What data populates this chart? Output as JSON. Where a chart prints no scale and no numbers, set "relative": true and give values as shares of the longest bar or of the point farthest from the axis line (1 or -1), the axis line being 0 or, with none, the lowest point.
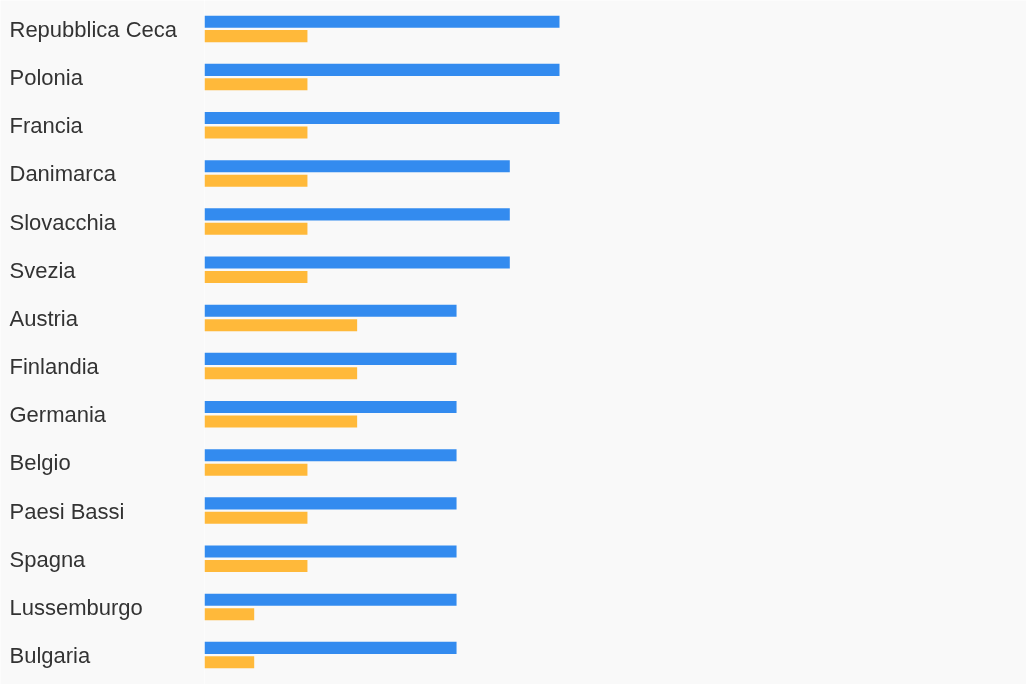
{
  "chart_data": {
    "type": "bar",
    "orientation": "horizontal",
    "relative": true,
    "categories": [
      "Repubblica Ceca",
      "Polonia",
      "Francia",
      "Danimarca",
      "Slovacchia",
      "Svezia",
      "Austria",
      "Finlandia",
      "Germania",
      "Belgio",
      "Paesi Bassi",
      "Spagna",
      "Lussemburgo",
      "Bulgaria"
    ],
    "series": [
      {
        "color": "#338bef",
        "values": [
          1,
          1,
          1,
          0.86,
          0.86,
          0.86,
          0.71,
          0.71,
          0.71,
          0.71,
          0.71,
          0.71,
          0.71,
          0.71
        ]
      },
      {
        "color": "#ffb93a",
        "values": [
          0.29,
          0.29,
          0.29,
          0.29,
          0.29,
          0.29,
          0.43,
          0.43,
          0.43,
          0.29,
          0.29,
          0.29,
          0.14,
          0.14
        ]
      }
    ],
    "grid": false
  }
}
